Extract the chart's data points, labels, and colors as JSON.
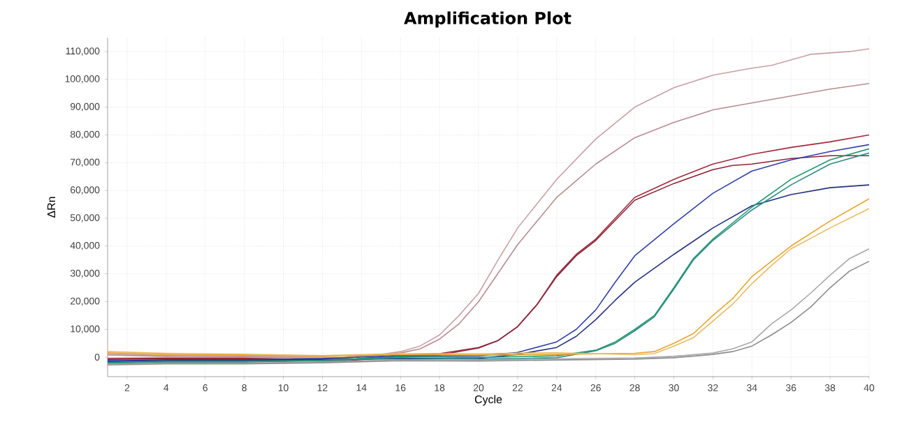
{
  "chart_data": {
    "type": "line",
    "title": "Amplification Plot",
    "xlabel": "Cycle",
    "ylabel": "ΔRn",
    "xlim": [
      1,
      40
    ],
    "ylim": [
      -7000,
      115000
    ],
    "xticks": [
      2,
      4,
      6,
      8,
      10,
      12,
      14,
      16,
      18,
      20,
      22,
      24,
      26,
      28,
      30,
      32,
      34,
      36,
      38,
      40
    ],
    "yticks": [
      {
        "value": 0,
        "label": "0"
      },
      {
        "value": 10000,
        "label": "10,000"
      },
      {
        "value": 20000,
        "label": "20,000"
      },
      {
        "value": 30000,
        "label": "30,000"
      },
      {
        "value": 40000,
        "label": "40,000"
      },
      {
        "value": 50000,
        "label": "50,000"
      },
      {
        "value": 60000,
        "label": "60,000"
      },
      {
        "value": 70000,
        "label": "70,000"
      },
      {
        "value": 80000,
        "label": "80,000"
      },
      {
        "value": 90000,
        "label": "90,000"
      },
      {
        "value": 100000,
        "label": "100,000"
      },
      {
        "value": 110000,
        "label": "110,000"
      }
    ],
    "grid": true,
    "line_style": "solid",
    "series": [
      {
        "color": "#c8a0a4",
        "x": [
          1,
          4,
          8,
          12,
          13,
          14,
          15,
          16,
          17,
          18,
          19,
          20,
          21,
          22,
          24,
          26,
          28,
          30,
          32,
          34,
          35,
          37,
          39,
          40
        ],
        "values": [
          1200,
          600,
          500,
          0,
          -200,
          500,
          1000,
          2000,
          4000,
          8000,
          15000,
          23000,
          35000,
          46500,
          64000,
          78500,
          90000,
          97000,
          101500,
          104000,
          105000,
          109000,
          110000,
          111000
        ]
      },
      {
        "color": "#b88c90",
        "x": [
          1,
          4,
          8,
          12,
          13,
          14,
          15,
          16,
          17,
          18,
          19,
          20,
          22,
          24,
          26,
          28,
          30,
          32,
          34,
          36,
          38,
          40
        ],
        "values": [
          800,
          300,
          200,
          -500,
          -600,
          300,
          800,
          1500,
          3000,
          6500,
          12000,
          20000,
          40500,
          57500,
          69500,
          79000,
          84500,
          89000,
          91500,
          94000,
          96500,
          98500
        ]
      },
      {
        "color": "#a3283c",
        "x": [
          1,
          4,
          8,
          12,
          13,
          16,
          18,
          20,
          21,
          22,
          23,
          24,
          25,
          26,
          28,
          30,
          32,
          34,
          36,
          38,
          40
        ],
        "values": [
          -400,
          -300,
          -300,
          -1000,
          -1100,
          800,
          1300,
          3500,
          6000,
          11000,
          19000,
          29500,
          37000,
          42500,
          57500,
          64000,
          69500,
          73000,
          75500,
          77500,
          80000
        ]
      },
      {
        "color": "#8a2434",
        "x": [
          1,
          4,
          8,
          12,
          13,
          16,
          18,
          20,
          21,
          22,
          23,
          24,
          25,
          26,
          28,
          30,
          32,
          33,
          34,
          36,
          38,
          40
        ],
        "values": [
          -800,
          -600,
          -600,
          -1400,
          -1500,
          300,
          800,
          3300,
          6000,
          11000,
          19000,
          29000,
          36500,
          42000,
          56500,
          62500,
          67500,
          69000,
          69500,
          71500,
          72500,
          72500
        ]
      },
      {
        "color": "#3040a8",
        "x": [
          1,
          4,
          8,
          12,
          16,
          20,
          22,
          24,
          25,
          26,
          27,
          28,
          30,
          32,
          34,
          36,
          38,
          40
        ],
        "values": [
          -1200,
          -900,
          -900,
          -500,
          600,
          400,
          1700,
          5500,
          10000,
          17000,
          27000,
          36500,
          48000,
          59000,
          67000,
          71000,
          74000,
          76500
        ]
      },
      {
        "color": "#243080",
        "x": [
          1,
          4,
          8,
          12,
          16,
          20,
          22,
          24,
          25,
          26,
          27,
          28,
          30,
          32,
          34,
          36,
          38,
          40
        ],
        "values": [
          -1600,
          -1200,
          -1200,
          -800,
          -600,
          -400,
          1000,
          3500,
          7500,
          13500,
          20500,
          27000,
          37000,
          46500,
          54500,
          58500,
          61000,
          62000
        ]
      },
      {
        "color": "#1f9a6a",
        "x": [
          1,
          4,
          8,
          12,
          16,
          20,
          24,
          26,
          27,
          28,
          29,
          30,
          31,
          32,
          34,
          36,
          38,
          40
        ],
        "values": [
          -1900,
          -1500,
          -1500,
          -1100,
          200,
          -100,
          500,
          2500,
          5500,
          10000,
          15000,
          25000,
          35500,
          42500,
          54000,
          64000,
          71000,
          75000
        ]
      },
      {
        "color": "#2c8c88",
        "x": [
          1,
          4,
          8,
          12,
          16,
          20,
          24,
          26,
          27,
          28,
          29,
          30,
          31,
          32,
          34,
          36,
          38,
          40
        ],
        "values": [
          -2200,
          -1800,
          -1800,
          -1300,
          -200,
          -700,
          -200,
          2300,
          5000,
          9500,
          14500,
          24500,
          35000,
          42000,
          53000,
          62000,
          69500,
          73500
        ]
      },
      {
        "color": "#e8a42c",
        "x": [
          1,
          4,
          8,
          12,
          16,
          20,
          24,
          28,
          29,
          30,
          31,
          32,
          33,
          34,
          35,
          36,
          38,
          40
        ],
        "values": [
          1600,
          1000,
          800,
          300,
          900,
          800,
          1000,
          1400,
          2000,
          5000,
          8500,
          15000,
          21000,
          29000,
          34500,
          40000,
          49000,
          57000
        ]
      },
      {
        "color": "#e8bc60",
        "x": [
          1,
          4,
          8,
          12,
          16,
          20,
          24,
          28,
          29,
          30,
          31,
          32,
          33,
          34,
          35,
          36,
          38,
          40
        ],
        "values": [
          2000,
          1400,
          1100,
          600,
          1300,
          1300,
          1600,
          900,
          1300,
          4000,
          7000,
          13000,
          19000,
          26500,
          33000,
          39000,
          46500,
          53500
        ]
      },
      {
        "color": "#a8a8a8",
        "x": [
          1,
          4,
          8,
          12,
          16,
          20,
          24,
          28,
          30,
          32,
          33,
          34,
          35,
          36,
          37,
          38,
          39,
          40
        ],
        "values": [
          -2500,
          -2100,
          -2100,
          -1700,
          -900,
          -1000,
          -600,
          -300,
          300,
          1500,
          3000,
          5500,
          12000,
          17000,
          23000,
          29500,
          35500,
          39000
        ]
      },
      {
        "color": "#8c8c8c",
        "x": [
          1,
          4,
          8,
          12,
          16,
          20,
          24,
          28,
          30,
          32,
          33,
          34,
          35,
          36,
          37,
          38,
          39,
          40
        ],
        "values": [
          -2800,
          -2400,
          -2400,
          -2000,
          -1300,
          -1400,
          -1000,
          -700,
          -200,
          1000,
          2000,
          4000,
          8000,
          12500,
          18000,
          25000,
          31000,
          34500
        ]
      }
    ]
  }
}
